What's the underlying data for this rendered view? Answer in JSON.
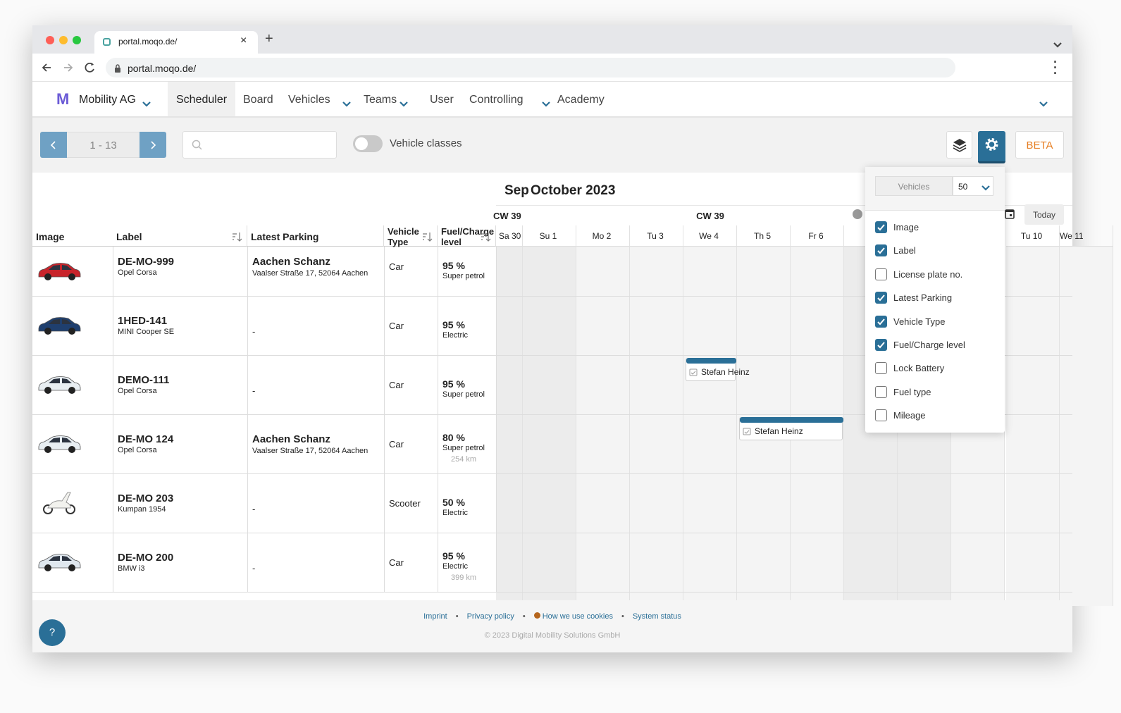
{
  "browser": {
    "tab_title": "portal.moqo.de/",
    "url": "portal.moqo.de/"
  },
  "nav": {
    "brand": "Mobility AG",
    "items": [
      "Scheduler",
      "Board",
      "Vehicles",
      "Teams",
      "User",
      "Controlling",
      "Academy"
    ],
    "active": 0,
    "dropdowns": [
      false,
      false,
      true,
      true,
      false,
      true,
      false
    ]
  },
  "toolbar": {
    "range": "1 - 13",
    "toggle_label": "Vehicle classes",
    "beta": "BETA"
  },
  "table": {
    "columns": [
      "Image",
      "Label",
      "Latest Parking",
      "Vehicle Type",
      "Fuel/Charge level"
    ],
    "rows": [
      {
        "label": "DE-MO-999",
        "model": "Opel Corsa",
        "parking": "Aachen Schanz",
        "address": "Vaalser Straße 17, 52064 Aachen",
        "type": "Car",
        "level": "95 %",
        "fuel": "Super petrol",
        "color": "#c8242b"
      },
      {
        "label": "1HED-141",
        "model": "MINI Cooper SE",
        "parking": "-",
        "type": "Car",
        "level": "95 %",
        "fuel": "Electric",
        "color": "#1f3f6e"
      },
      {
        "label": "DEMO-111",
        "model": "Opel Corsa",
        "parking": "-",
        "type": "Car",
        "level": "95 %",
        "fuel": "Super petrol",
        "color": "#e8eef2",
        "booking": "Stefan Heinz"
      },
      {
        "label": "DE-MO 124",
        "model": "Opel Corsa",
        "parking": "Aachen Schanz",
        "address": "Vaalser Straße 17, 52064 Aachen",
        "type": "Car",
        "level": "80 %",
        "fuel": "Super petrol",
        "range": "254 km",
        "color": "#e8eef2",
        "booking": "Stefan Heinz"
      },
      {
        "label": "DE-MO 203",
        "model": "Kumpan 1954",
        "parking": "-",
        "type": "Scooter",
        "level": "50 %",
        "fuel": "Electric",
        "color": "#f2f2ee"
      },
      {
        "label": "DE-MO 200",
        "model": "BMW i3",
        "parking": "-",
        "type": "Car",
        "level": "95 %",
        "fuel": "Electric",
        "range": "399 km",
        "color": "#dfe7ee"
      }
    ]
  },
  "calendar": {
    "prev_month": "Sep",
    "month": "October 2023",
    "weeks": [
      "CW 39",
      "CW 39"
    ],
    "days": [
      "Sa 30",
      "Su 1",
      "Mo 2",
      "Tu 3",
      "We 4",
      "Th 5",
      "Fr 6",
      null,
      null,
      null,
      "Tu 10",
      "We 11"
    ],
    "today": "Today"
  },
  "popup": {
    "view": "Vehicles",
    "count": "50",
    "options": [
      {
        "label": "Image",
        "checked": true
      },
      {
        "label": "Label",
        "checked": true
      },
      {
        "label": "License plate no.",
        "checked": false
      },
      {
        "label": "Latest Parking",
        "checked": true
      },
      {
        "label": "Vehicle Type",
        "checked": true
      },
      {
        "label": "Fuel/Charge level",
        "checked": true
      },
      {
        "label": "Lock Battery",
        "checked": false
      },
      {
        "label": "Fuel type",
        "checked": false
      },
      {
        "label": "Mileage",
        "checked": false
      }
    ]
  },
  "footer": {
    "links": [
      "Imprint",
      "Privacy policy",
      "How we use cookies",
      "System status"
    ],
    "copyright": "© 2023 Digital Mobility Solutions GmbH",
    "help": "?"
  }
}
